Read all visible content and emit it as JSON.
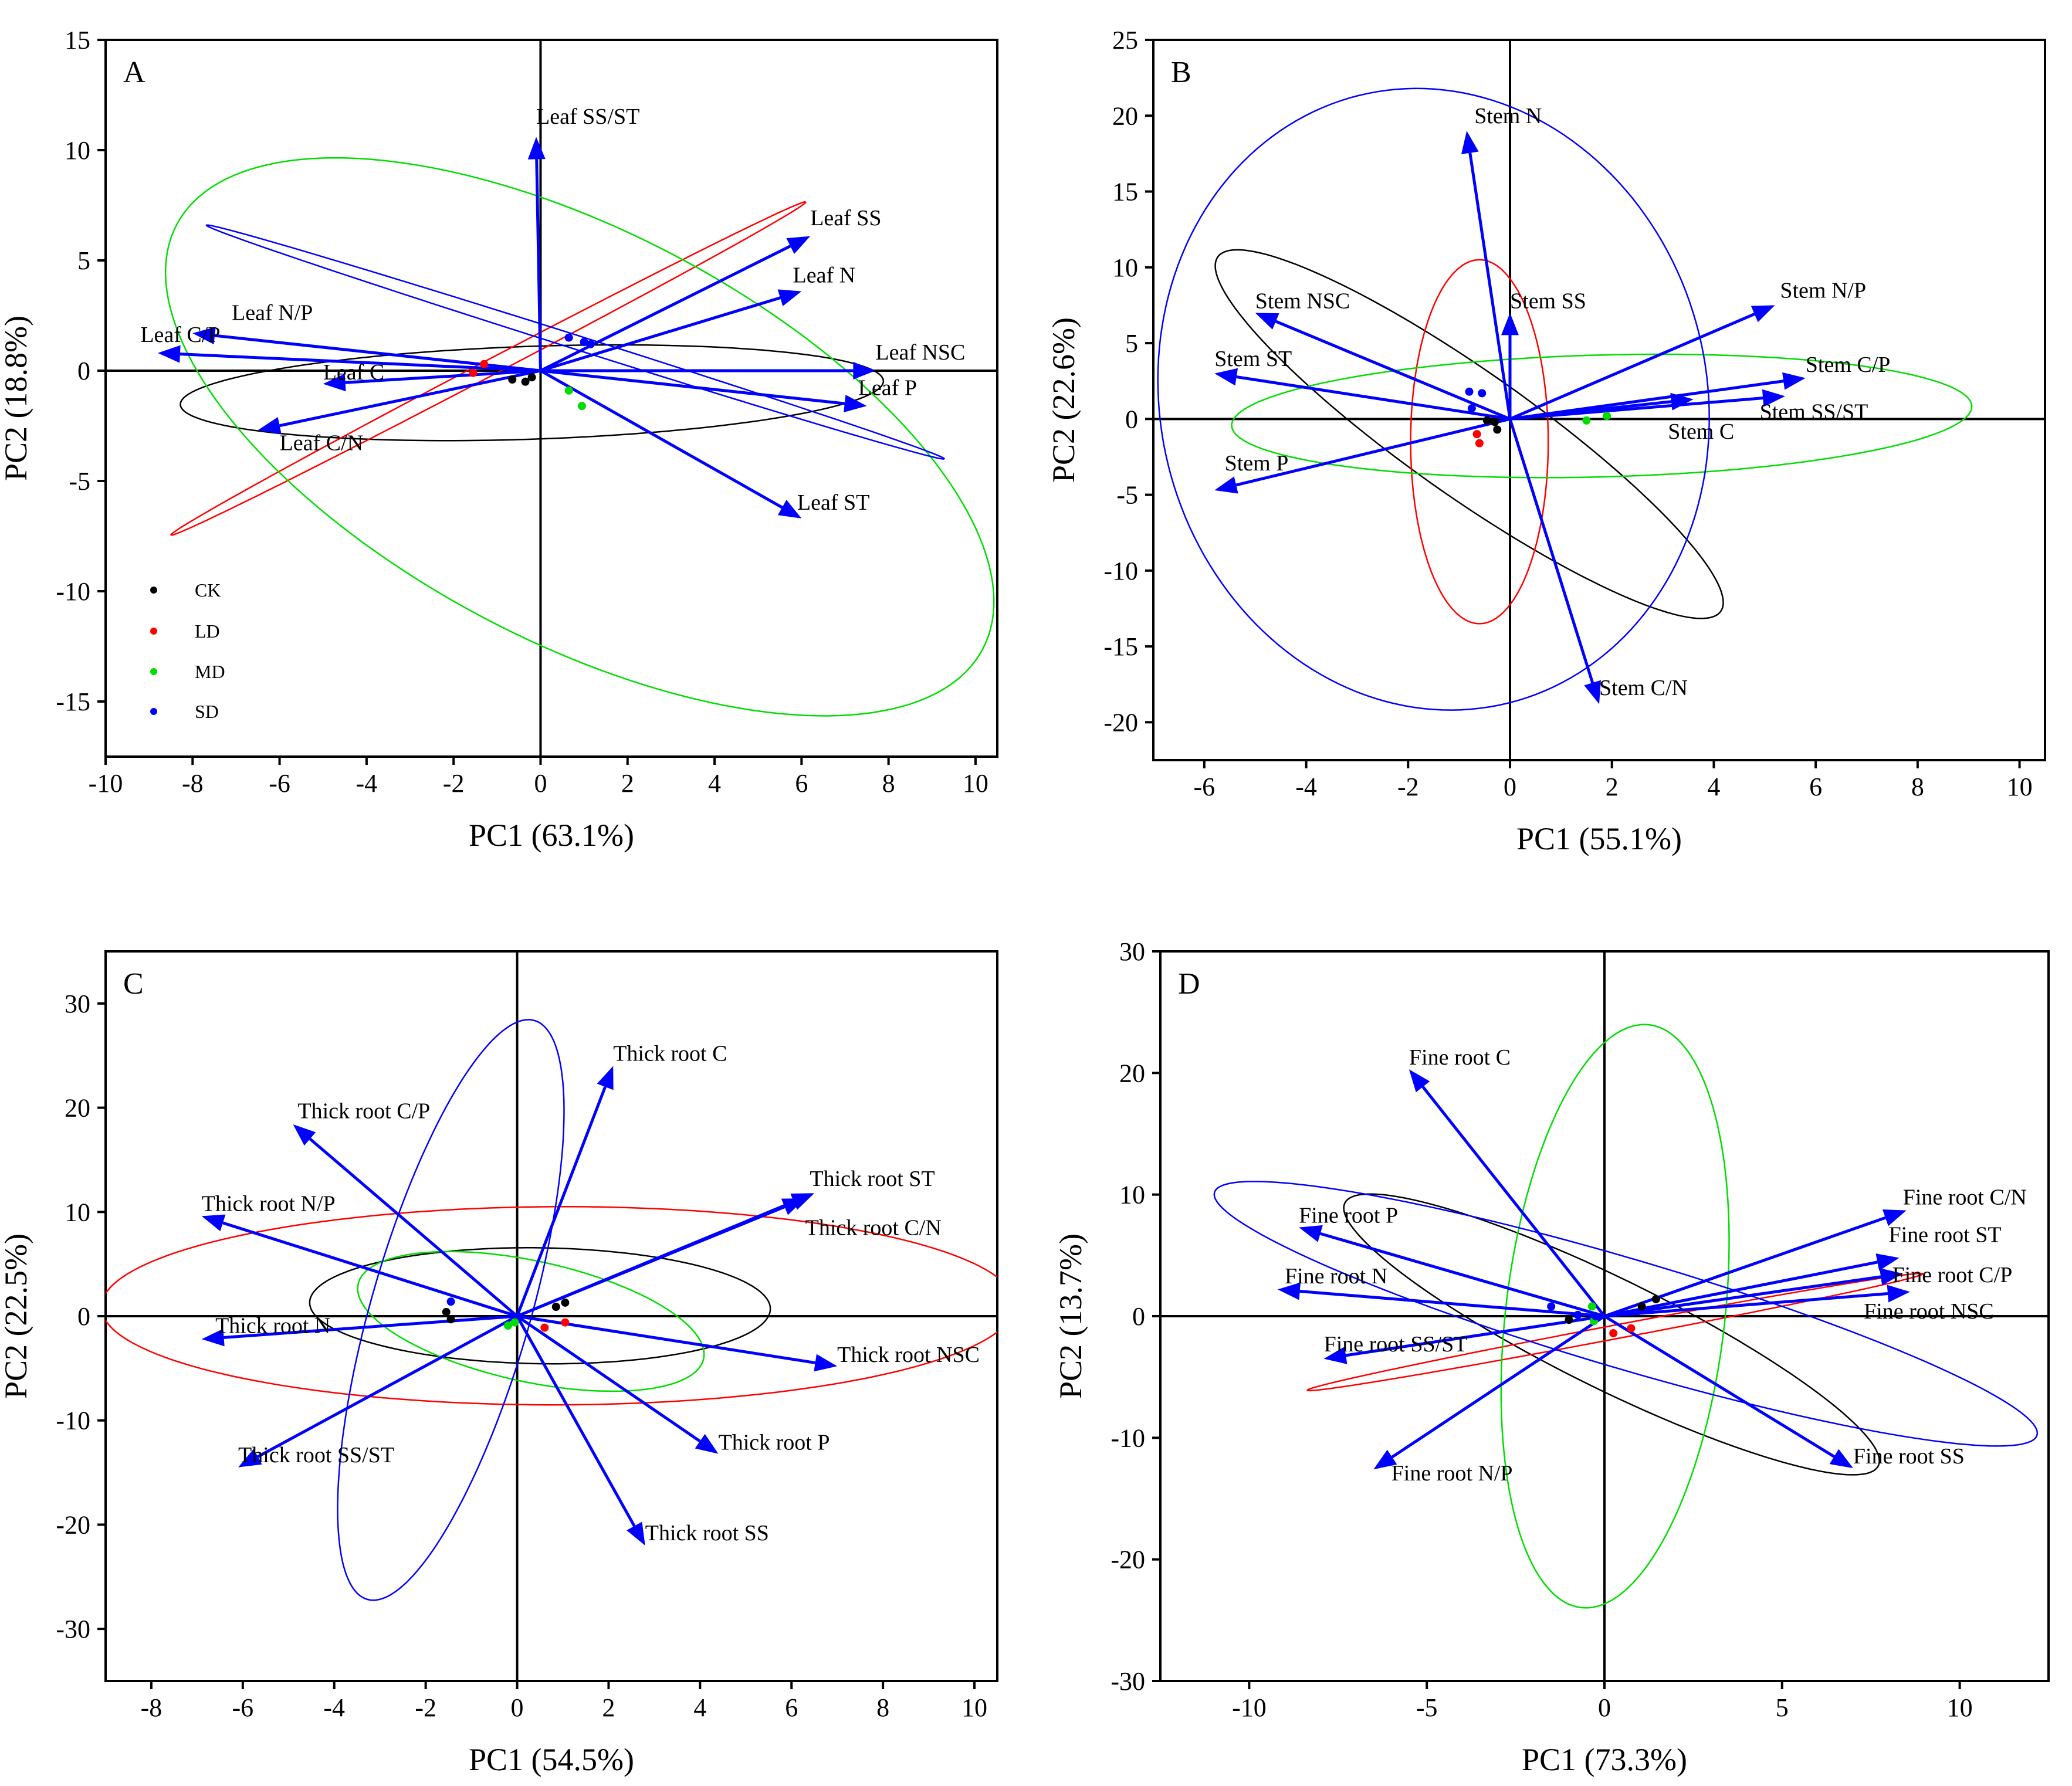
{
  "colors": {
    "CK": "#000000",
    "LD": "#ff0000",
    "MD": "#00dd00",
    "SD": "#0000ff",
    "arrow": "#0000ff"
  },
  "legend": {
    "items": [
      {
        "group": "CK",
        "label": "CK"
      },
      {
        "group": "LD",
        "label": "LD"
      },
      {
        "group": "MD",
        "label": "MD"
      },
      {
        "group": "SD",
        "label": "SD"
      }
    ]
  },
  "chart_data": [
    {
      "type": "scatter",
      "panel": "A",
      "xlabel": "PC1 (63.1%)",
      "ylabel": "PC2 (18.8%)",
      "xlim": [
        -10,
        10.5
      ],
      "ylim": [
        -17.5,
        15
      ],
      "xticks": [
        -10,
        -8,
        -6,
        -4,
        -2,
        0,
        2,
        4,
        6,
        8,
        10
      ],
      "yticks": [
        -15,
        -10,
        -5,
        0,
        5,
        10,
        15
      ],
      "show_legend": true,
      "loadings": [
        {
          "label": "Leaf SS/ST",
          "x": -0.1,
          "y": 10.6,
          "lx": -0.1,
          "ly": 11.2
        },
        {
          "label": "Leaf SS",
          "x": 6.2,
          "y": 6.1,
          "lx": 6.2,
          "ly": 6.6
        },
        {
          "label": "Leaf N",
          "x": 6.0,
          "y": 3.6,
          "lx": 5.8,
          "ly": 4.0
        },
        {
          "label": "Leaf NSC",
          "x": 7.7,
          "y": 0.0,
          "lx": 7.7,
          "ly": 0.5
        },
        {
          "label": "Leaf P",
          "x": 7.5,
          "y": -1.6,
          "lx": 7.3,
          "ly": -1.1
        },
        {
          "label": "Leaf ST",
          "x": 6.0,
          "y": -6.7,
          "lx": 5.9,
          "ly": -6.3
        },
        {
          "label": "Leaf C/N",
          "x": -6.5,
          "y": -2.7,
          "lx": -6.0,
          "ly": -3.6
        },
        {
          "label": "Leaf C",
          "x": -5.0,
          "y": -0.6,
          "lx": -5.0,
          "ly": -0.4
        },
        {
          "label": "Leaf N/P",
          "x": -8.0,
          "y": 1.7,
          "lx": -7.1,
          "ly": 2.3
        },
        {
          "label": "Leaf C/P",
          "x": -8.8,
          "y": 0.8,
          "lx": -9.2,
          "ly": 1.3
        }
      ],
      "ellipses": [
        {
          "group": "CK",
          "cx": -0.2,
          "cy": -1.0,
          "rx": 8.1,
          "ry": 2.1,
          "angle": 4
        },
        {
          "group": "LD",
          "cx": -1.2,
          "cy": 0.1,
          "rx": 10.5,
          "ry": 0.28,
          "angle": 46
        },
        {
          "group": "MD",
          "cx": 0.9,
          "cy": -3.0,
          "rx": 14.3,
          "ry": 6.8,
          "angle": -58
        },
        {
          "group": "SD",
          "cx": 0.8,
          "cy": 1.3,
          "rx": 10.0,
          "ry": 0.28,
          "angle": -32
        }
      ],
      "points": [
        {
          "group": "CK",
          "x": -0.65,
          "y": -0.4
        },
        {
          "group": "CK",
          "x": -0.35,
          "y": -0.5
        },
        {
          "group": "CK",
          "x": -0.2,
          "y": -0.3
        },
        {
          "group": "LD",
          "x": -1.3,
          "y": 0.3
        },
        {
          "group": "LD",
          "x": -1.55,
          "y": -0.1
        },
        {
          "group": "MD",
          "x": 0.65,
          "y": -0.9
        },
        {
          "group": "MD",
          "x": 0.95,
          "y": -1.6
        },
        {
          "group": "SD",
          "x": 0.65,
          "y": 1.5
        },
        {
          "group": "SD",
          "x": 1.0,
          "y": 1.3
        },
        {
          "group": "SD",
          "x": 1.15,
          "y": 1.2
        }
      ]
    },
    {
      "type": "scatter",
      "panel": "B",
      "xlabel": "PC1 (55.1%)",
      "ylabel": "PC2 (22.6%)",
      "xlim": [
        -7,
        10.5
      ],
      "ylim": [
        -22.5,
        25
      ],
      "xticks": [
        -6,
        -4,
        -2,
        0,
        2,
        4,
        6,
        8,
        10
      ],
      "yticks": [
        -20,
        -15,
        -10,
        -5,
        0,
        5,
        10,
        15,
        20,
        25
      ],
      "show_legend": false,
      "loadings": [
        {
          "label": "Stem N",
          "x": -0.85,
          "y": 19.0,
          "lx": -0.7,
          "ly": 19.5
        },
        {
          "label": "Stem SS",
          "x": 0.0,
          "y": 7.0,
          "lx": 0.0,
          "ly": 7.3
        },
        {
          "label": "Stem N/P",
          "x": 5.2,
          "y": 7.5,
          "lx": 5.3,
          "ly": 8.0
        },
        {
          "label": "Stem C/P",
          "x": 5.8,
          "y": 2.7,
          "lx": 5.8,
          "ly": 3.1
        },
        {
          "label": "Stem SS/ST",
          "x": 5.4,
          "y": 1.5,
          "lx": 4.9,
          "ly": 0.0
        },
        {
          "label": "Stem C",
          "x": 3.6,
          "y": 1.3,
          "lx": 3.1,
          "ly": -1.3
        },
        {
          "label": "Stem C/N",
          "x": 1.75,
          "y": -18.8,
          "lx": 1.75,
          "ly": -18.2
        },
        {
          "label": "Stem NSC",
          "x": -5.0,
          "y": 7.0,
          "lx": -5.0,
          "ly": 7.3
        },
        {
          "label": "Stem ST",
          "x": -5.8,
          "y": 3.0,
          "lx": -5.8,
          "ly": 3.5
        },
        {
          "label": "Stem P",
          "x": -5.8,
          "y": -4.7,
          "lx": -5.6,
          "ly": -3.4
        }
      ],
      "ellipses": [
        {
          "group": "CK",
          "cx": -0.8,
          "cy": -1.0,
          "rx": 13.0,
          "ry": 1.9,
          "angle": -69
        },
        {
          "group": "LD",
          "cx": -0.6,
          "cy": -1.5,
          "rx": 1.35,
          "ry": 12.0,
          "angle": 0
        },
        {
          "group": "MD",
          "cx": 1.8,
          "cy": 0.2,
          "rx": 7.3,
          "ry": 4.0,
          "angle": 7
        },
        {
          "group": "SD",
          "cx": -1.5,
          "cy": 1.3,
          "rx": 5.4,
          "ry": 20.5,
          "angle": 1
        }
      ],
      "points": [
        {
          "group": "CK",
          "x": -0.45,
          "y": -0.1
        },
        {
          "group": "CK",
          "x": -0.3,
          "y": -0.2
        },
        {
          "group": "CK",
          "x": -0.25,
          "y": -0.7
        },
        {
          "group": "LD",
          "x": -0.65,
          "y": -1.0
        },
        {
          "group": "LD",
          "x": -0.6,
          "y": -1.6
        },
        {
          "group": "MD",
          "x": 1.5,
          "y": -0.1
        },
        {
          "group": "MD",
          "x": 1.9,
          "y": 0.2
        },
        {
          "group": "SD",
          "x": -0.8,
          "y": 1.8
        },
        {
          "group": "SD",
          "x": -0.55,
          "y": 1.7
        },
        {
          "group": "SD",
          "x": -0.75,
          "y": 0.7
        }
      ]
    },
    {
      "type": "scatter",
      "panel": "C",
      "xlabel": "PC1 (54.5%)",
      "ylabel": "PC2 (22.5%)",
      "xlim": [
        -9,
        10.5
      ],
      "ylim": [
        -35,
        35
      ],
      "xticks": [
        -8,
        -6,
        -4,
        -2,
        0,
        2,
        4,
        6,
        8,
        10
      ],
      "yticks": [
        -30,
        -20,
        -10,
        0,
        10,
        20,
        30
      ],
      "show_legend": false,
      "loadings": [
        {
          "label": "Thick root C",
          "x": 2.1,
          "y": 24.0,
          "lx": 2.1,
          "ly": 24.5
        },
        {
          "label": "Thick root ST",
          "x": 6.5,
          "y": 11.8,
          "lx": 6.4,
          "ly": 12.5
        },
        {
          "label": "Thick root C/N",
          "x": 6.3,
          "y": 11.3,
          "lx": 6.3,
          "ly": 7.8
        },
        {
          "label": "Thick root NSC",
          "x": 7.0,
          "y": -4.8,
          "lx": 7.0,
          "ly": -4.4
        },
        {
          "label": "Thick root P",
          "x": 4.4,
          "y": -13.2,
          "lx": 4.4,
          "ly": -12.8
        },
        {
          "label": "Thick root SS",
          "x": 2.8,
          "y": -22.0,
          "lx": 2.8,
          "ly": -21.5
        },
        {
          "label": "Thick root SS/ST",
          "x": -6.1,
          "y": -14.5,
          "lx": -6.1,
          "ly": -14.0
        },
        {
          "label": "Thick root N",
          "x": -6.9,
          "y": -2.2,
          "lx": -6.6,
          "ly": -1.6
        },
        {
          "label": "Thick root N/P",
          "x": -6.9,
          "y": 9.6,
          "lx": -6.9,
          "ly": 10.1
        },
        {
          "label": "Thick root C/P",
          "x": -4.9,
          "y": 18.4,
          "lx": -4.8,
          "ly": 19.0
        }
      ],
      "ellipses": [
        {
          "group": "CK",
          "cx": 0.5,
          "cy": 1.0,
          "rx": 5.0,
          "ry": 5.6,
          "angle": 14
        },
        {
          "group": "LD",
          "cx": 0.9,
          "cy": 1.0,
          "rx": 10.0,
          "ry": 9.5,
          "angle": 7
        },
        {
          "group": "MD",
          "cx": 0.3,
          "cy": -0.5,
          "rx": 3.2,
          "ry": 7.0,
          "angle": 19
        },
        {
          "group": "SD",
          "cx": -1.45,
          "cy": 0.6,
          "rx": 1.8,
          "ry": 27.9,
          "angle": -3.5
        }
      ],
      "points": [
        {
          "group": "CK",
          "x": 0.85,
          "y": 0.9
        },
        {
          "group": "CK",
          "x": 1.05,
          "y": 1.3
        },
        {
          "group": "CK",
          "x": -1.55,
          "y": 0.4
        },
        {
          "group": "CK",
          "x": -1.45,
          "y": -0.3
        },
        {
          "group": "LD",
          "x": 0.6,
          "y": -1.1
        },
        {
          "group": "LD",
          "x": 1.05,
          "y": -0.6
        },
        {
          "group": "MD",
          "x": -0.2,
          "y": -0.9
        },
        {
          "group": "MD",
          "x": -0.05,
          "y": -0.6
        },
        {
          "group": "SD",
          "x": -1.45,
          "y": 1.4
        }
      ]
    },
    {
      "type": "scatter",
      "panel": "D",
      "xlabel": "PC1 (73.3%)",
      "ylabel": "PC2 (13.7%)",
      "xlim": [
        -12.5,
        12.5
      ],
      "ylim": [
        -30,
        30
      ],
      "xticks": [
        -10,
        -5,
        0,
        5,
        10
      ],
      "yticks": [
        -30,
        -20,
        -10,
        0,
        10,
        20,
        30
      ],
      "show_legend": false,
      "loadings": [
        {
          "label": "Fine root C",
          "x": -5.5,
          "y": 20.3,
          "lx": -5.5,
          "ly": 20.7
        },
        {
          "label": "Fine root C/N",
          "x": 8.5,
          "y": 8.7,
          "lx": 8.4,
          "ly": 9.2
        },
        {
          "label": "Fine root ST",
          "x": 8.3,
          "y": 4.8,
          "lx": 8.0,
          "ly": 6.1
        },
        {
          "label": "Fine root C/P",
          "x": 8.4,
          "y": 3.5,
          "lx": 8.1,
          "ly": 2.8
        },
        {
          "label": "Fine root NSC",
          "x": 8.6,
          "y": 2.0,
          "lx": 7.3,
          "ly": -0.2
        },
        {
          "label": "Fine root SS",
          "x": 7.0,
          "y": -12.5,
          "lx": 7.0,
          "ly": -12.1
        },
        {
          "label": "Fine root N/P",
          "x": -6.5,
          "y": -12.6,
          "lx": -6.0,
          "ly": -13.5
        },
        {
          "label": "Fine root SS/ST",
          "x": -7.9,
          "y": -3.5,
          "lx": -7.9,
          "ly": -2.9
        },
        {
          "label": "Fine root N",
          "x": -9.2,
          "y": 2.2,
          "lx": -9.0,
          "ly": 2.7
        },
        {
          "label": "Fine root P",
          "x": -8.6,
          "y": 7.3,
          "lx": -8.6,
          "ly": 7.7
        }
      ],
      "ellipses": [
        {
          "group": "CK",
          "cx": 0.2,
          "cy": -1.5,
          "rx": 13.5,
          "ry": 2.8,
          "angle": -58
        },
        {
          "group": "LD",
          "cx": 0.3,
          "cy": -1.3,
          "rx": 9.9,
          "ry": 0.5,
          "angle": 29
        },
        {
          "group": "MD",
          "cx": 0.3,
          "cy": 0.0,
          "rx": 3.1,
          "ry": 24.0,
          "angle": -2
        },
        {
          "group": "SD",
          "cx": 0.6,
          "cy": 0.2,
          "rx": 15.5,
          "ry": 3.5,
          "angle": -43
        }
      ],
      "points": [
        {
          "group": "CK",
          "x": -1.0,
          "y": -0.3
        },
        {
          "group": "CK",
          "x": 1.05,
          "y": 0.8
        },
        {
          "group": "CK",
          "x": 1.45,
          "y": 1.4
        },
        {
          "group": "LD",
          "x": 0.25,
          "y": -1.4
        },
        {
          "group": "LD",
          "x": 0.75,
          "y": -1.0
        },
        {
          "group": "MD",
          "x": -0.35,
          "y": 0.8
        },
        {
          "group": "MD",
          "x": -0.3,
          "y": -0.4
        },
        {
          "group": "SD",
          "x": -1.5,
          "y": 0.8
        },
        {
          "group": "SD",
          "x": -0.75,
          "y": 0.1
        },
        {
          "group": "SD",
          "x": -0.25,
          "y": 0.0
        }
      ]
    }
  ]
}
